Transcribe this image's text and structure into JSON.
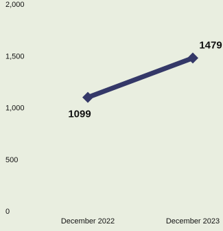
{
  "chart_data": {
    "type": "line",
    "categories": [
      "December 2022",
      "December 2023"
    ],
    "series": [
      {
        "values": [
          1099,
          1479
        ]
      }
    ],
    "data_labels": [
      "1099",
      "1479"
    ],
    "y_ticks": [
      "2,000",
      "1,500",
      "1,000",
      "500",
      "0"
    ],
    "y_tick_values": [
      2000,
      1500,
      1000,
      500,
      0
    ],
    "ylim": [
      0,
      2000
    ],
    "title": "",
    "xlabel": "",
    "ylabel": "",
    "grid": false,
    "legend": "none",
    "marker": "diamond"
  },
  "colors": {
    "background": "#e9eee0",
    "series": "#343868",
    "text": "#111111"
  }
}
